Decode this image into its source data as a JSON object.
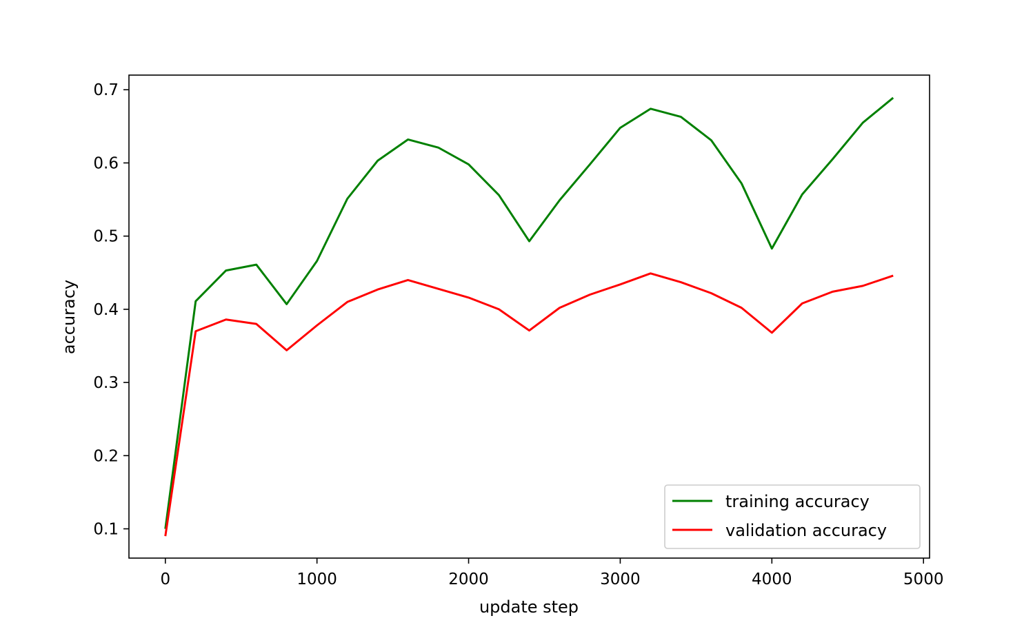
{
  "chart_data": {
    "type": "line",
    "title": "",
    "xlabel": "update step",
    "ylabel": "accuracy",
    "xlim": [
      -240,
      5040
    ],
    "ylim": [
      0.06,
      0.72
    ],
    "xticks": [
      0,
      1000,
      2000,
      3000,
      4000,
      5000
    ],
    "xtick_labels": [
      "0",
      "1000",
      "2000",
      "3000",
      "4000",
      "5000"
    ],
    "yticks": [
      0.1,
      0.2,
      0.3,
      0.4,
      0.5,
      0.6,
      0.7
    ],
    "ytick_labels": [
      "0.1",
      "0.2",
      "0.3",
      "0.4",
      "0.5",
      "0.6",
      "0.7"
    ],
    "grid": false,
    "legend_position": "lower-right",
    "x": [
      0,
      200,
      400,
      600,
      800,
      1000,
      1200,
      1400,
      1600,
      1800,
      2000,
      2200,
      2400,
      2600,
      2800,
      3000,
      3200,
      3400,
      3600,
      3800,
      4000,
      4200,
      4400,
      4600,
      4800
    ],
    "series": [
      {
        "name": "training accuracy",
        "color": "#008000",
        "values": [
          0.1,
          0.411,
          0.453,
          0.461,
          0.407,
          0.466,
          0.551,
          0.603,
          0.632,
          0.621,
          0.598,
          0.556,
          0.493,
          0.549,
          0.598,
          0.648,
          0.674,
          0.663,
          0.631,
          0.572,
          0.483,
          0.557,
          0.605,
          0.655,
          0.689
        ]
      },
      {
        "name": "validation accuracy",
        "color": "#ff0000",
        "values": [
          0.09,
          0.37,
          0.386,
          0.38,
          0.344,
          0.378,
          0.41,
          0.427,
          0.44,
          0.428,
          0.416,
          0.4,
          0.371,
          0.402,
          0.42,
          0.434,
          0.449,
          0.437,
          0.422,
          0.402,
          0.368,
          0.408,
          0.424,
          0.432,
          0.446
        ]
      }
    ]
  }
}
